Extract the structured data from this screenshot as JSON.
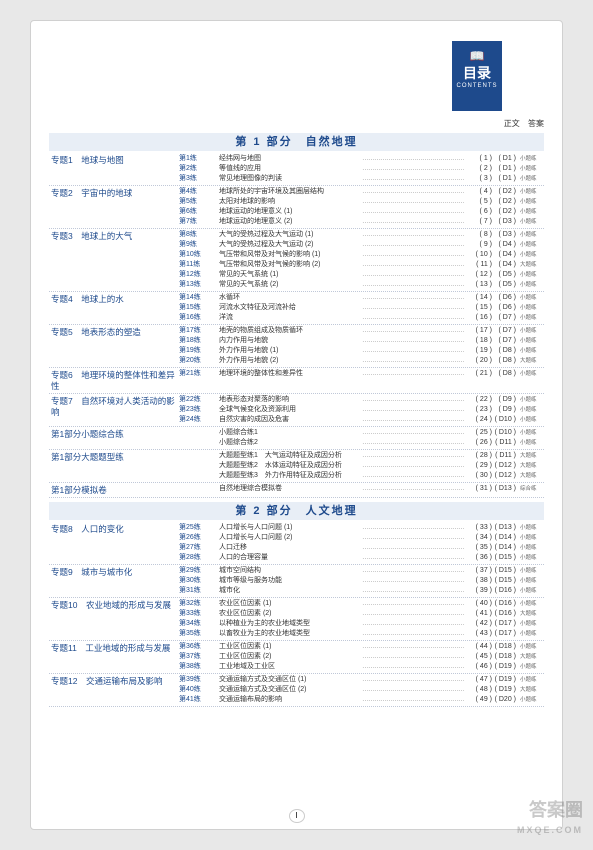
{
  "header": {
    "icon": "📖",
    "title_cn": "目录",
    "title_en": "CONTENTS",
    "col_zw": "正文",
    "col_da": "答案"
  },
  "page_number": "I",
  "watermark": {
    "main": "答案圈",
    "sub": "MXQE.COM"
  },
  "parts": [
    {
      "title": "第 1 部分　自然地理",
      "topics": [
        {
          "label": "专题1　地球与地图",
          "rows": [
            {
              "n": "第1练",
              "t": "经纬网与地图",
              "p": "( 1 )",
              "a": "( D1 )",
              "ty": "小题练"
            },
            {
              "n": "第2练",
              "t": "等值线的应用",
              "p": "( 2 )",
              "a": "( D1 )",
              "ty": "小题练"
            },
            {
              "n": "第3练",
              "t": "常见地理图像的判读",
              "p": "( 3 )",
              "a": "( D1 )",
              "ty": "小题练"
            }
          ]
        },
        {
          "label": "专题2　宇宙中的地球",
          "rows": [
            {
              "n": "第4练",
              "t": "地球所处的宇宙环境及其圈层结构",
              "p": "( 4 )",
              "a": "( D2 )",
              "ty": "小题练"
            },
            {
              "n": "第5练",
              "t": "太阳对地球的影响",
              "p": "( 5 )",
              "a": "( D2 )",
              "ty": "小题练"
            },
            {
              "n": "第6练",
              "t": "地球运动的地理意义 (1)",
              "p": "( 6 )",
              "a": "( D2 )",
              "ty": "小题练"
            },
            {
              "n": "第7练",
              "t": "地球运动的地理意义 (2)",
              "p": "( 7 )",
              "a": "( D3 )",
              "ty": "小题练"
            }
          ]
        },
        {
          "label": "专题3　地球上的大气",
          "rows": [
            {
              "n": "第8练",
              "t": "大气的受热过程及大气运动 (1)",
              "p": "( 8 )",
              "a": "( D3 )",
              "ty": "小题练"
            },
            {
              "n": "第9练",
              "t": "大气的受热过程及大气运动 (2)",
              "p": "( 9 )",
              "a": "( D4 )",
              "ty": "小题练"
            },
            {
              "n": "第10练",
              "t": "气压带和风带及对气候的影响 (1)",
              "p": "( 10 )",
              "a": "( D4 )",
              "ty": "小题练"
            },
            {
              "n": "第11练",
              "t": "气压带和风带及对气候的影响 (2)",
              "p": "( 11 )",
              "a": "( D4 )",
              "ty": "大题练"
            },
            {
              "n": "第12练",
              "t": "常见的天气系统 (1)",
              "p": "( 12 )",
              "a": "( D5 )",
              "ty": "小题练"
            },
            {
              "n": "第13练",
              "t": "常见的天气系统 (2)",
              "p": "( 13 )",
              "a": "( D5 )",
              "ty": "小题练"
            }
          ]
        },
        {
          "label": "专题4　地球上的水",
          "rows": [
            {
              "n": "第14练",
              "t": "水循环",
              "p": "( 14 )",
              "a": "( D6 )",
              "ty": "小题练"
            },
            {
              "n": "第15练",
              "t": "河流水文特征及河流补给",
              "p": "( 15 )",
              "a": "( D6 )",
              "ty": "小题练"
            },
            {
              "n": "第16练",
              "t": "洋流",
              "p": "( 16 )",
              "a": "( D7 )",
              "ty": "小题练"
            }
          ]
        },
        {
          "label": "专题5　地表形态的塑造",
          "rows": [
            {
              "n": "第17练",
              "t": "地壳的物质组成及物质循环",
              "p": "( 17 )",
              "a": "( D7 )",
              "ty": "小题练"
            },
            {
              "n": "第18练",
              "t": "内力作用与地貌",
              "p": "( 18 )",
              "a": "( D7 )",
              "ty": "小题练"
            },
            {
              "n": "第19练",
              "t": "外力作用与地貌 (1)",
              "p": "( 19 )",
              "a": "( D8 )",
              "ty": "小题练"
            },
            {
              "n": "第20练",
              "t": "外力作用与地貌 (2)",
              "p": "( 20 )",
              "a": "( D8 )",
              "ty": "大题练"
            }
          ]
        },
        {
          "label": "专题6　地理环境的整体性和差异性",
          "rows": [
            {
              "n": "第21练",
              "t": "地理环境的整体性和差异性",
              "p": "( 21 )",
              "a": "( D8 )",
              "ty": "小题练"
            }
          ]
        },
        {
          "label": "专题7　自然环境对人类活动的影响",
          "rows": [
            {
              "n": "第22练",
              "t": "地表形态对聚落的影响",
              "p": "( 22 )",
              "a": "( D9 )",
              "ty": "小题练"
            },
            {
              "n": "第23练",
              "t": "全球气候变化及资源利用",
              "p": "( 23 )",
              "a": "( D9 )",
              "ty": "小题练"
            },
            {
              "n": "第24练",
              "t": "自然灾害的成因及危害",
              "p": "( 24 )",
              "a": "( D10 )",
              "ty": "小题练"
            }
          ]
        },
        {
          "label": "第1部分小题综合练",
          "rows": [
            {
              "n": "",
              "t": "小题综合练1",
              "p": "( 25 )",
              "a": "( D10 )",
              "ty": "小题练"
            },
            {
              "n": "",
              "t": "小题综合练2",
              "p": "( 26 )",
              "a": "( D11 )",
              "ty": "小题练"
            }
          ]
        },
        {
          "label": "第1部分大题题型练",
          "rows": [
            {
              "n": "",
              "t": "大题题型练1　大气运动特征及成因分析",
              "p": "( 28 )",
              "a": "( D11 )",
              "ty": "大题练"
            },
            {
              "n": "",
              "t": "大题题型练2　水体运动特征及成因分析",
              "p": "( 29 )",
              "a": "( D12 )",
              "ty": "大题练"
            },
            {
              "n": "",
              "t": "大题题型练3　外力作用特征及成因分析",
              "p": "( 30 )",
              "a": "( D12 )",
              "ty": "大题练"
            }
          ]
        },
        {
          "label": "第1部分模拟卷",
          "rows": [
            {
              "n": "",
              "t": "自然地理综合模拟卷",
              "p": "( 31 )",
              "a": "( D13 )",
              "ty": "综合练"
            }
          ]
        }
      ]
    },
    {
      "title": "第 2 部分　人文地理",
      "topics": [
        {
          "label": "专题8　人口的变化",
          "rows": [
            {
              "n": "第25练",
              "t": "人口增长与人口问题 (1)",
              "p": "( 33 )",
              "a": "( D13 )",
              "ty": "小题练"
            },
            {
              "n": "第26练",
              "t": "人口增长与人口问题 (2)",
              "p": "( 34 )",
              "a": "( D14 )",
              "ty": "小题练"
            },
            {
              "n": "第27练",
              "t": "人口迁移",
              "p": "( 35 )",
              "a": "( D14 )",
              "ty": "小题练"
            },
            {
              "n": "第28练",
              "t": "人口的合理容量",
              "p": "( 36 )",
              "a": "( D15 )",
              "ty": "小题练"
            }
          ]
        },
        {
          "label": "专题9　城市与城市化",
          "rows": [
            {
              "n": "第29练",
              "t": "城市空间结构",
              "p": "( 37 )",
              "a": "( D15 )",
              "ty": "小题练"
            },
            {
              "n": "第30练",
              "t": "城市等级与服务功能",
              "p": "( 38 )",
              "a": "( D15 )",
              "ty": "小题练"
            },
            {
              "n": "第31练",
              "t": "城市化",
              "p": "( 39 )",
              "a": "( D16 )",
              "ty": "小题练"
            }
          ]
        },
        {
          "label": "专题10　农业地域的形成与发展",
          "rows": [
            {
              "n": "第32练",
              "t": "农业区位因素 (1)",
              "p": "( 40 )",
              "a": "( D16 )",
              "ty": "小题练"
            },
            {
              "n": "第33练",
              "t": "农业区位因素 (2)",
              "p": "( 41 )",
              "a": "( D16 )",
              "ty": "大题练"
            },
            {
              "n": "第34练",
              "t": "以种植业为主的农业地域类型",
              "p": "( 42 )",
              "a": "( D17 )",
              "ty": "小题练"
            },
            {
              "n": "第35练",
              "t": "以畜牧业为主的农业地域类型",
              "p": "( 43 )",
              "a": "( D17 )",
              "ty": "小题练"
            }
          ]
        },
        {
          "label": "专题11　工业地域的形成与发展",
          "rows": [
            {
              "n": "第36练",
              "t": "工业区位因素 (1)",
              "p": "( 44 )",
              "a": "( D18 )",
              "ty": "小题练"
            },
            {
              "n": "第37练",
              "t": "工业区位因素 (2)",
              "p": "( 45 )",
              "a": "( D18 )",
              "ty": "大题练"
            },
            {
              "n": "第38练",
              "t": "工业地域及工业区",
              "p": "( 46 )",
              "a": "( D19 )",
              "ty": "小题练"
            }
          ]
        },
        {
          "label": "专题12　交通运输布局及影响",
          "rows": [
            {
              "n": "第39练",
              "t": "交通运输方式及交通区位 (1)",
              "p": "( 47 )",
              "a": "( D19 )",
              "ty": "小题练"
            },
            {
              "n": "第40练",
              "t": "交通运输方式及交通区位 (2)",
              "p": "( 48 )",
              "a": "( D19 )",
              "ty": "大题练"
            },
            {
              "n": "第41练",
              "t": "交通运输布局的影响",
              "p": "( 49 )",
              "a": "( D20 )",
              "ty": "小题练"
            }
          ]
        }
      ]
    }
  ]
}
